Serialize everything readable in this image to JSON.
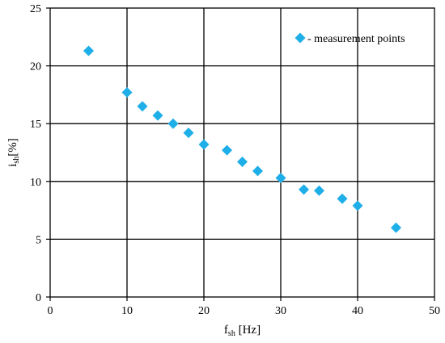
{
  "chart_data": {
    "type": "scatter",
    "title": "",
    "xlabel": {
      "base": "f",
      "sub": "sh",
      "rest": " [Hz]"
    },
    "ylabel": {
      "base": "i",
      "sub": "sh",
      "rest": "[%]"
    },
    "xlim": [
      0,
      50
    ],
    "ylim": [
      0,
      25
    ],
    "xticks": [
      0,
      10,
      20,
      30,
      40,
      50
    ],
    "yticks": [
      0,
      5,
      10,
      15,
      20,
      25
    ],
    "grid": true,
    "legend_position": "top-right",
    "marker_color": "#1eaee8",
    "series": [
      {
        "name": "- measurement points",
        "points": [
          {
            "x": 5,
            "y": 21.3
          },
          {
            "x": 10,
            "y": 17.7
          },
          {
            "x": 12,
            "y": 16.5
          },
          {
            "x": 14,
            "y": 15.7
          },
          {
            "x": 16,
            "y": 15.0
          },
          {
            "x": 18,
            "y": 14.2
          },
          {
            "x": 20,
            "y": 13.2
          },
          {
            "x": 23,
            "y": 12.7
          },
          {
            "x": 25,
            "y": 11.7
          },
          {
            "x": 27,
            "y": 10.9
          },
          {
            "x": 30,
            "y": 10.3
          },
          {
            "x": 33,
            "y": 9.3
          },
          {
            "x": 35,
            "y": 9.2
          },
          {
            "x": 38,
            "y": 8.5
          },
          {
            "x": 40,
            "y": 7.9
          },
          {
            "x": 45,
            "y": 6.0
          }
        ]
      }
    ]
  }
}
